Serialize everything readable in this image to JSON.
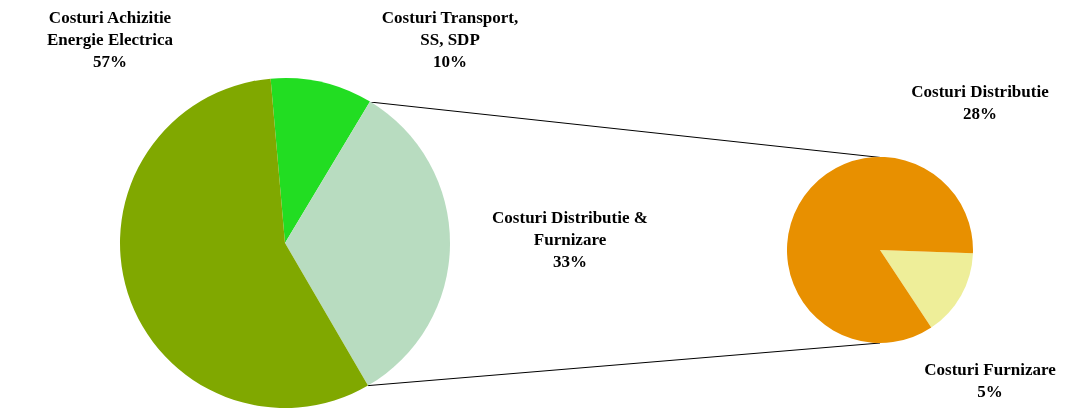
{
  "chart_data": [
    {
      "type": "pie",
      "categories": [
        "Costuri Transport, SS, SDP",
        "Costuri Distributie & Furnizare",
        "Costuri Achizitie Energie Electrica"
      ],
      "values": [
        10,
        33,
        57
      ],
      "colors": [
        "#22dd22",
        "#b8dcc0",
        "#80a800"
      ],
      "value_labels": [
        "10%",
        "33%",
        "57%"
      ]
    },
    {
      "type": "pie",
      "categories": [
        "Costuri Furnizare",
        "Costuri Distributie"
      ],
      "values": [
        5,
        28
      ],
      "colors": [
        "#eeee99",
        "#e89000"
      ],
      "value_labels": [
        "5%",
        "28%"
      ]
    }
  ]
}
